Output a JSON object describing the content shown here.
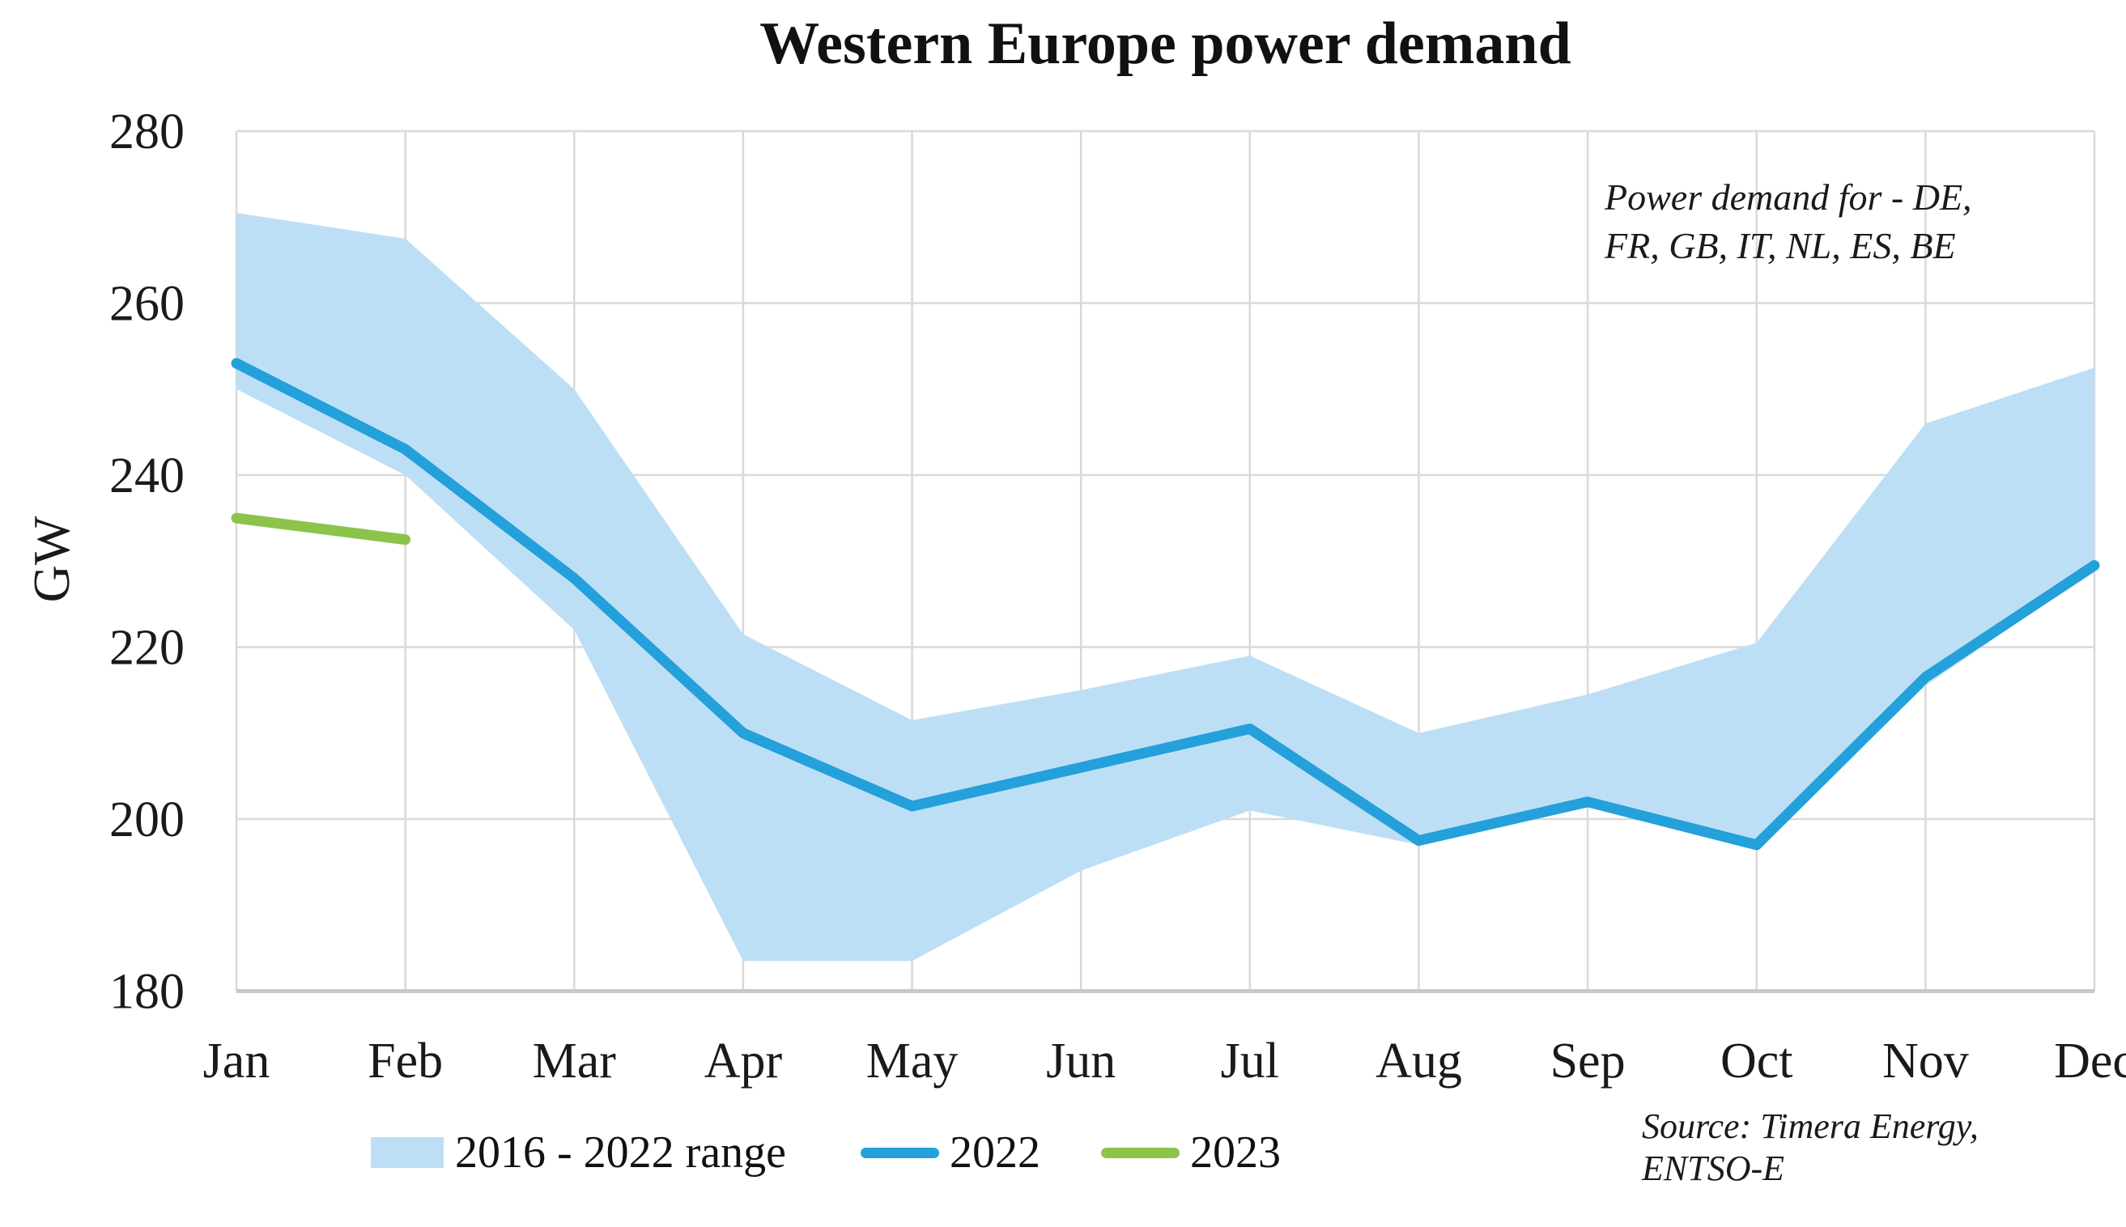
{
  "chart_data": {
    "type": "line",
    "title": "Western Europe power demand",
    "xlabel": "",
    "ylabel": "GW",
    "ylim": [
      180,
      280
    ],
    "yticks": [
      180,
      200,
      220,
      240,
      260,
      280
    ],
    "categories": [
      "Jan",
      "Feb",
      "Mar",
      "Apr",
      "May",
      "Jun",
      "Jul",
      "Aug",
      "Sep",
      "Oct",
      "Nov",
      "Dec"
    ],
    "grid": true,
    "legend_position": "bottom",
    "series": [
      {
        "name": "2016 - 2022 range",
        "type": "band",
        "color": "#BDDFF5",
        "max": [
          270.5,
          267.5,
          250,
          221.5,
          211.5,
          215,
          219,
          210,
          214.5,
          220.5,
          246,
          252.5
        ],
        "min": [
          250,
          240,
          222,
          183.5,
          183.5,
          194,
          201,
          197,
          201.5,
          196.5,
          215.5,
          229
        ]
      },
      {
        "name": "2022",
        "type": "line",
        "color": "#24A0DB",
        "values": [
          253,
          243,
          228,
          210,
          201.5,
          206,
          210.5,
          197.5,
          202,
          197,
          216.5,
          229.5
        ]
      },
      {
        "name": "2023",
        "type": "line",
        "color": "#8CC44B",
        "values": [
          235,
          232.5,
          null,
          null,
          null,
          null,
          null,
          null,
          null,
          null,
          null,
          null
        ]
      }
    ],
    "annotation": [
      "Power demand for - DE,",
      "FR, GB, IT, NL, ES, BE"
    ],
    "source": [
      "Source: Timera Energy,",
      "ENTSO-E"
    ],
    "style": {
      "grid_color": "#D9D9D9",
      "axis_color": "#C9C9C9",
      "text_color": "#1A1A1A",
      "band_color": "#BDDFF5",
      "line_2022_color": "#24A0DB",
      "line_2023_color": "#8CC44B"
    }
  }
}
